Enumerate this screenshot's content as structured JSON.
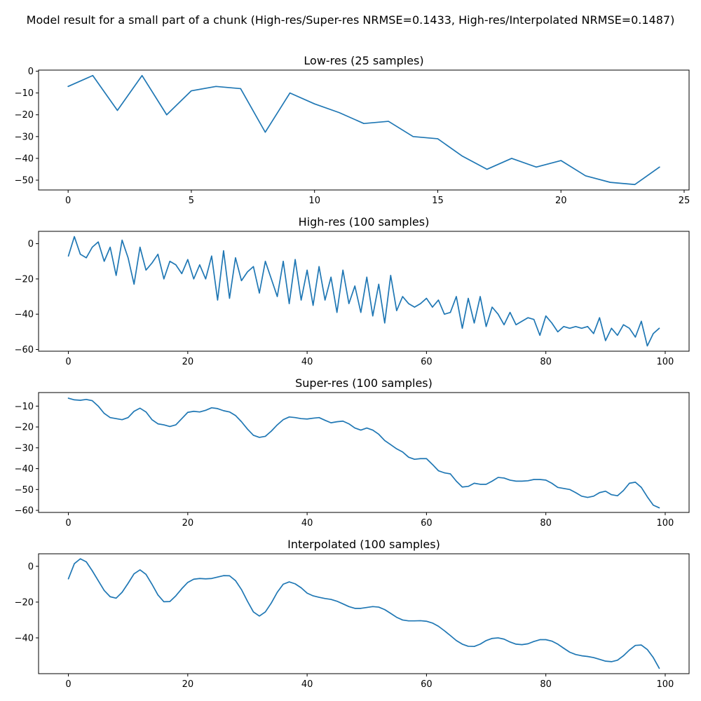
{
  "figure": {
    "suptitle": "Model result for a small part of a chunk (High-res/Super-res NRMSE=0.1433, High-res/Interpolated NRMSE=0.1487)"
  },
  "colors": {
    "line": "#1f77b4",
    "axis": "#000000",
    "background": "#ffffff"
  },
  "chart_data": [
    {
      "type": "line",
      "title": "Low-res (25 samples)",
      "xlabel": "",
      "ylabel": "",
      "grid": false,
      "xlim": [
        -1.2,
        25.2
      ],
      "ylim": [
        -54.5,
        0.5
      ],
      "xticks": [
        0,
        5,
        10,
        15,
        20,
        25
      ],
      "yticks": [
        0,
        -10,
        -20,
        -30,
        -40,
        -50
      ],
      "series": [
        {
          "x": [
            0,
            1,
            2,
            3,
            4,
            5,
            6,
            7,
            8,
            9,
            10,
            11,
            12,
            13,
            14,
            15,
            16,
            17,
            18,
            19,
            20,
            21,
            22,
            23,
            24
          ],
          "y": [
            -7,
            -2,
            -18,
            -2,
            -20,
            -9,
            -7,
            -8,
            -28,
            -10,
            -15,
            -19,
            -24,
            -23,
            -30,
            -31,
            -39,
            -45,
            -40,
            -44,
            -41,
            -48,
            -51,
            -52,
            -44
          ]
        }
      ]
    },
    {
      "type": "line",
      "title": "High-res (100 samples)",
      "xlabel": "",
      "ylabel": "",
      "grid": false,
      "xlim": [
        -5,
        104
      ],
      "ylim": [
        -61,
        7
      ],
      "xticks": [
        0,
        20,
        40,
        60,
        80,
        100
      ],
      "yticks": [
        0,
        -20,
        -40,
        -60
      ],
      "series": [
        {
          "x": [
            0,
            1,
            2,
            3,
            4,
            5,
            6,
            7,
            8,
            9,
            10,
            11,
            12,
            13,
            14,
            15,
            16,
            17,
            18,
            19,
            20,
            21,
            22,
            23,
            24,
            25,
            26,
            27,
            28,
            29,
            30,
            31,
            32,
            33,
            34,
            35,
            36,
            37,
            38,
            39,
            40,
            41,
            42,
            43,
            44,
            45,
            46,
            47,
            48,
            49,
            50,
            51,
            52,
            53,
            54,
            55,
            56,
            57,
            58,
            59,
            60,
            61,
            62,
            63,
            64,
            65,
            66,
            67,
            68,
            69,
            70,
            71,
            72,
            73,
            74,
            75,
            76,
            77,
            78,
            79,
            80,
            81,
            82,
            83,
            84,
            85,
            86,
            87,
            88,
            89,
            90,
            91,
            92,
            93,
            94,
            95,
            96,
            97,
            98,
            99
          ],
          "y": [
            -7,
            4,
            -6,
            -8,
            -2,
            1,
            -10,
            -2,
            -18,
            2,
            -8,
            -23,
            -2,
            -15,
            -11,
            -6,
            -20,
            -10,
            -12,
            -17,
            -9,
            -20,
            -12,
            -20,
            -7,
            -32,
            -4,
            -31,
            -8,
            -21,
            -16,
            -13,
            -28,
            -10,
            -20,
            -30,
            -10,
            -34,
            -9,
            -32,
            -15,
            -35,
            -13,
            -32,
            -19,
            -39,
            -15,
            -34,
            -24,
            -39,
            -19,
            -41,
            -23,
            -45,
            -18,
            -38,
            -30,
            -34,
            -36,
            -34,
            -31,
            -36,
            -32,
            -40,
            -39,
            -30,
            -48,
            -31,
            -45,
            -30,
            -47,
            -36,
            -40,
            -46,
            -39,
            -46,
            -44,
            -42,
            -43,
            -52,
            -41,
            -45,
            -50,
            -47,
            -48,
            -47,
            -48,
            -47,
            -51,
            -42,
            -55,
            -48,
            -52,
            -46,
            -48,
            -53,
            -44,
            -58,
            -51,
            -48
          ]
        }
      ]
    },
    {
      "type": "line",
      "title": "Super-res (100 samples)",
      "xlabel": "",
      "ylabel": "",
      "grid": false,
      "xlim": [
        -5,
        104
      ],
      "ylim": [
        -61,
        -3.5
      ],
      "xticks": [
        0,
        20,
        40,
        60,
        80,
        100
      ],
      "yticks": [
        -10,
        -20,
        -30,
        -40,
        -50,
        -60
      ],
      "series": [
        {
          "x": [
            0,
            1,
            2,
            3,
            4,
            5,
            6,
            7,
            8,
            9,
            10,
            11,
            12,
            13,
            14,
            15,
            16,
            17,
            18,
            19,
            20,
            21,
            22,
            23,
            24,
            25,
            26,
            27,
            28,
            29,
            30,
            31,
            32,
            33,
            34,
            35,
            36,
            37,
            38,
            39,
            40,
            41,
            42,
            43,
            44,
            45,
            46,
            47,
            48,
            49,
            50,
            51,
            52,
            53,
            54,
            55,
            56,
            57,
            58,
            59,
            60,
            61,
            62,
            63,
            64,
            65,
            66,
            67,
            68,
            69,
            70,
            71,
            72,
            73,
            74,
            75,
            76,
            77,
            78,
            79,
            80,
            81,
            82,
            83,
            84,
            85,
            86,
            87,
            88,
            89,
            90,
            91,
            92,
            93,
            94,
            95,
            96,
            97,
            98,
            99
          ],
          "y": [
            -6.2,
            -7,
            -7.2,
            -6.8,
            -7.4,
            -10,
            -13.5,
            -15.5,
            -16,
            -16.5,
            -15.5,
            -12.5,
            -11,
            -12.8,
            -16.5,
            -18.5,
            -19,
            -19.8,
            -19,
            -16,
            -13,
            -12.5,
            -12.8,
            -12,
            -10.8,
            -11.2,
            -12.2,
            -12.8,
            -14.5,
            -17.5,
            -21,
            -24,
            -25,
            -24.5,
            -22,
            -19,
            -16.5,
            -15.2,
            -15.5,
            -16,
            -16.2,
            -15.8,
            -15.5,
            -16.8,
            -18,
            -17.5,
            -17.2,
            -18.5,
            -20.5,
            -21.5,
            -20.5,
            -21.5,
            -23.5,
            -26.5,
            -28.5,
            -30.5,
            -32,
            -34.5,
            -35.5,
            -35.2,
            -35.2,
            -38,
            -41,
            -42,
            -42.5,
            -46,
            -48.8,
            -48.5,
            -47,
            -47.5,
            -47.5,
            -46,
            -44.2,
            -44.5,
            -45.5,
            -46,
            -46,
            -45.8,
            -45.2,
            -45.2,
            -45.5,
            -47,
            -49,
            -49.5,
            -50,
            -51.5,
            -53.2,
            -53.8,
            -53.2,
            -51.5,
            -50.8,
            -52.5,
            -53,
            -50.5,
            -47,
            -46.5,
            -49,
            -53.5,
            -57.5,
            -58.8
          ]
        }
      ]
    },
    {
      "type": "line",
      "title": "Interpolated (100 samples)",
      "xlabel": "",
      "ylabel": "",
      "grid": false,
      "xlim": [
        -5,
        104
      ],
      "ylim": [
        -60,
        7
      ],
      "xticks": [
        0,
        20,
        40,
        60,
        80,
        100
      ],
      "yticks": [
        0,
        -20,
        -40
      ],
      "series": [
        {
          "x": [
            0,
            1,
            2,
            3,
            4,
            5,
            6,
            7,
            8,
            9,
            10,
            11,
            12,
            13,
            14,
            15,
            16,
            17,
            18,
            19,
            20,
            21,
            22,
            23,
            24,
            25,
            26,
            27,
            28,
            29,
            30,
            31,
            32,
            33,
            34,
            35,
            36,
            37,
            38,
            39,
            40,
            41,
            42,
            43,
            44,
            45,
            46,
            47,
            48,
            49,
            50,
            51,
            52,
            53,
            54,
            55,
            56,
            57,
            58,
            59,
            60,
            61,
            62,
            63,
            64,
            65,
            66,
            67,
            68,
            69,
            70,
            71,
            72,
            73,
            74,
            75,
            76,
            77,
            78,
            79,
            80,
            81,
            82,
            83,
            84,
            85,
            86,
            87,
            88,
            89,
            90,
            91,
            92,
            93,
            94,
            95,
            96,
            97,
            98,
            99
          ],
          "y": [
            -7,
            1.5,
            4.2,
            2.5,
            -2.5,
            -8,
            -13.5,
            -17,
            -17.8,
            -14.5,
            -9.5,
            -4.2,
            -2,
            -4.5,
            -10,
            -16,
            -19.8,
            -19.7,
            -16.5,
            -12.5,
            -9,
            -7.2,
            -6.8,
            -7,
            -6.8,
            -6,
            -5.2,
            -5.3,
            -8,
            -13,
            -19.5,
            -25.5,
            -27.8,
            -25.5,
            -20.5,
            -14.5,
            -10,
            -8.7,
            -9.8,
            -12,
            -15,
            -16.5,
            -17.3,
            -18,
            -18.5,
            -19.5,
            -21,
            -22.5,
            -23.5,
            -23.5,
            -23,
            -22.5,
            -22.8,
            -24.2,
            -26.3,
            -28.5,
            -30,
            -30.5,
            -30.5,
            -30.4,
            -30.7,
            -31.7,
            -33.5,
            -36,
            -38.7,
            -41.5,
            -43.5,
            -44.7,
            -44.8,
            -43.5,
            -41.5,
            -40.3,
            -40,
            -40.7,
            -42.3,
            -43.5,
            -43.8,
            -43.3,
            -42,
            -41,
            -41,
            -41.8,
            -43.5,
            -45.8,
            -48,
            -49.3,
            -50,
            -50.4,
            -51,
            -52,
            -53,
            -53.3,
            -52.5,
            -50,
            -46.8,
            -44.2,
            -44,
            -46.5,
            -51,
            -57
          ]
        }
      ]
    }
  ]
}
